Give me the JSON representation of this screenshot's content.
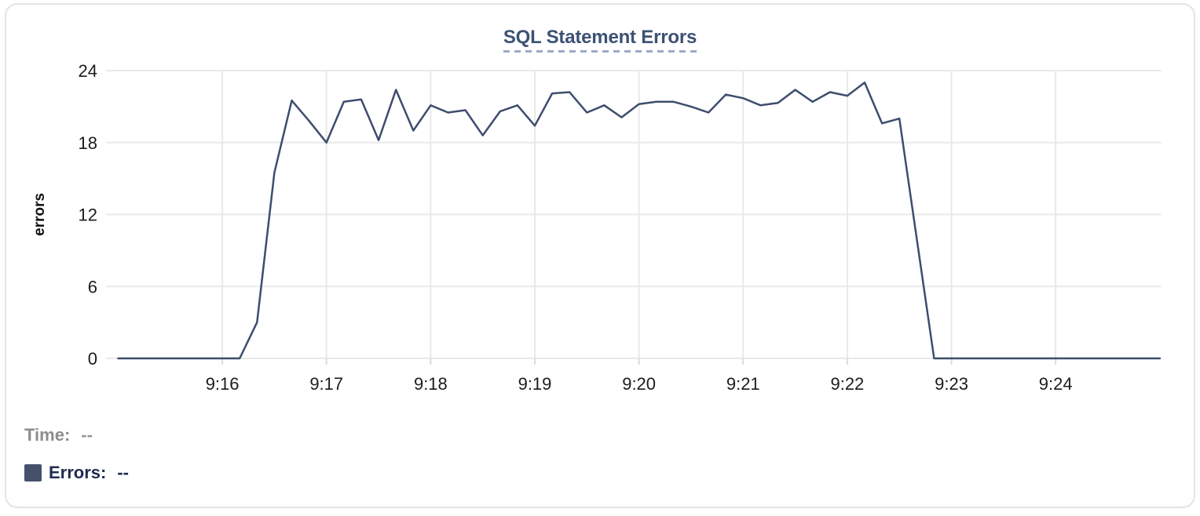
{
  "header": {
    "title": "SQL Statement Errors"
  },
  "tooltip": {
    "time_label": "Time:",
    "time_value": "--",
    "errors_label": "Errors:",
    "errors_value": "--"
  },
  "colors": {
    "line": "#3e4d6d",
    "swatch": "#44506c",
    "grid": "#e9e9e9",
    "tick_stub": "#dcdcdc",
    "title": "#3c5174",
    "title_dashes": "#9cabc7",
    "tick_text": "#1c1c1c",
    "time_text": "#8d8d8d",
    "errors_text": "#1f2b50"
  },
  "chart_data": {
    "type": "line",
    "title": "SQL Statement Errors",
    "xlabel": "",
    "ylabel": "errors",
    "ylim": [
      0,
      24
    ],
    "y_ticks": [
      0,
      6,
      12,
      18,
      24
    ],
    "x_ticks": [
      "9:16",
      "9:17",
      "9:18",
      "9:19",
      "9:20",
      "9:21",
      "9:22",
      "9:23",
      "9:24"
    ],
    "x_domain": [
      "9:14:53",
      "9:25:01"
    ],
    "grid": true,
    "legend_position": "bottom-left",
    "series": [
      {
        "name": "Errors",
        "color": "#3e4d6d",
        "points": [
          [
            "9:15:00",
            0
          ],
          [
            "9:15:10",
            0
          ],
          [
            "9:15:20",
            0
          ],
          [
            "9:15:30",
            0
          ],
          [
            "9:15:40",
            0
          ],
          [
            "9:15:50",
            0
          ],
          [
            "9:16:00",
            0
          ],
          [
            "9:16:10",
            0
          ],
          [
            "9:16:20",
            3
          ],
          [
            "9:16:30",
            15.5
          ],
          [
            "9:16:40",
            21.5
          ],
          [
            "9:16:50",
            19.8
          ],
          [
            "9:17:00",
            18
          ],
          [
            "9:17:10",
            21.4
          ],
          [
            "9:17:20",
            21.6
          ],
          [
            "9:17:30",
            18.2
          ],
          [
            "9:17:40",
            22.4
          ],
          [
            "9:17:50",
            19
          ],
          [
            "9:18:00",
            21.1
          ],
          [
            "9:18:10",
            20.5
          ],
          [
            "9:18:20",
            20.7
          ],
          [
            "9:18:30",
            18.6
          ],
          [
            "9:18:40",
            20.6
          ],
          [
            "9:18:50",
            21.1
          ],
          [
            "9:19:00",
            19.4
          ],
          [
            "9:19:10",
            22.1
          ],
          [
            "9:19:20",
            22.2
          ],
          [
            "9:19:30",
            20.5
          ],
          [
            "9:19:40",
            21.1
          ],
          [
            "9:19:50",
            20.1
          ],
          [
            "9:20:00",
            21.2
          ],
          [
            "9:20:10",
            21.4
          ],
          [
            "9:20:20",
            21.4
          ],
          [
            "9:20:30",
            21
          ],
          [
            "9:20:40",
            20.5
          ],
          [
            "9:20:50",
            22
          ],
          [
            "9:21:00",
            21.7
          ],
          [
            "9:21:10",
            21.1
          ],
          [
            "9:21:20",
            21.3
          ],
          [
            "9:21:30",
            22.4
          ],
          [
            "9:21:40",
            21.4
          ],
          [
            "9:21:50",
            22.2
          ],
          [
            "9:22:00",
            21.9
          ],
          [
            "9:22:10",
            23
          ],
          [
            "9:22:20",
            19.6
          ],
          [
            "9:22:30",
            20
          ],
          [
            "9:22:40",
            10
          ],
          [
            "9:22:50",
            0
          ],
          [
            "9:23:00",
            0
          ],
          [
            "9:23:10",
            0
          ],
          [
            "9:23:20",
            0
          ],
          [
            "9:23:30",
            0
          ],
          [
            "9:23:40",
            0
          ],
          [
            "9:23:50",
            0
          ],
          [
            "9:24:00",
            0
          ],
          [
            "9:24:10",
            0
          ],
          [
            "9:24:20",
            0
          ],
          [
            "9:24:30",
            0
          ],
          [
            "9:24:40",
            0
          ],
          [
            "9:24:50",
            0
          ],
          [
            "9:25:00",
            0
          ]
        ]
      }
    ]
  }
}
